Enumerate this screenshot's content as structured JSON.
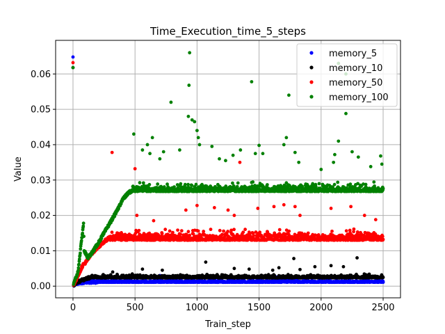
{
  "chart_data": {
    "type": "scatter",
    "title": "Time_Execution_time_5_steps",
    "xlabel": "Train_step",
    "ylabel": "Value",
    "xlim": [
      -140,
      2640
    ],
    "ylim": [
      -0.0033,
      0.0695
    ],
    "xticks": [
      0,
      500,
      1000,
      1500,
      2000,
      2500
    ],
    "yticks": [
      0.0,
      0.01,
      0.02,
      0.03,
      0.04,
      0.05,
      0.06
    ],
    "xtick_labels": [
      "0",
      "500",
      "1000",
      "1500",
      "2000",
      "2500"
    ],
    "ytick_labels": [
      "0.00",
      "0.01",
      "0.02",
      "0.03",
      "0.04",
      "0.05",
      "0.06"
    ],
    "grid": true,
    "legend_position": "upper-right",
    "series": [
      {
        "name": "memory_5",
        "color": "#0000ff",
        "points": [
          [
            0,
            0.0648
          ],
          [
            5,
            0.0002
          ],
          [
            25,
            0.0008
          ],
          [
            60,
            0.001
          ],
          [
            100,
            0.0012
          ],
          [
            200,
            0.0012
          ],
          [
            400,
            0.0012
          ],
          [
            700,
            0.0012
          ],
          [
            1000,
            0.0012
          ],
          [
            1300,
            0.0012
          ],
          [
            1600,
            0.0012
          ],
          [
            1900,
            0.0012
          ],
          [
            2200,
            0.0012
          ],
          [
            2500,
            0.0012
          ]
        ],
        "band": {
          "x_start": 60,
          "x_end": 2500,
          "base": 0.0012,
          "spread": 0.0008
        },
        "outliers": [
          [
            700,
            0.003
          ],
          [
            1130,
            0.0028
          ],
          [
            1640,
            0.0026
          ],
          [
            2360,
            0.0028
          ]
        ]
      },
      {
        "name": "memory_10",
        "color": "#000000",
        "points": [
          [
            0,
            0.0618
          ],
          [
            5,
            0.0003
          ],
          [
            30,
            0.001
          ],
          [
            80,
            0.0018
          ],
          [
            110,
            0.0022
          ],
          [
            150,
            0.0025
          ]
        ],
        "band": {
          "x_start": 150,
          "x_end": 2500,
          "base": 0.0025,
          "spread": 0.0012
        },
        "outliers": [
          [
            320,
            0.004
          ],
          [
            560,
            0.0048
          ],
          [
            720,
            0.0045
          ],
          [
            1070,
            0.0068
          ],
          [
            1300,
            0.005
          ],
          [
            1420,
            0.0048
          ],
          [
            1610,
            0.0045
          ],
          [
            1660,
            0.0052
          ],
          [
            1780,
            0.0078
          ],
          [
            1830,
            0.0047
          ],
          [
            1950,
            0.0055
          ],
          [
            2080,
            0.0058
          ],
          [
            2180,
            0.0055
          ],
          [
            2290,
            0.008
          ]
        ]
      },
      {
        "name": "memory_50",
        "color": "#ff0000",
        "points": [
          [
            0,
            0.0632
          ],
          [
            5,
            0.0003
          ],
          [
            40,
            0.003
          ],
          [
            80,
            0.006
          ],
          [
            110,
            0.007
          ],
          [
            150,
            0.0092
          ],
          [
            200,
            0.011
          ],
          [
            260,
            0.0128
          ],
          [
            300,
            0.014
          ]
        ],
        "band": {
          "x_start": 300,
          "x_end": 2500,
          "base": 0.0135,
          "spread": 0.0035
        },
        "outliers": [
          [
            315,
            0.0378
          ],
          [
            500,
            0.0332
          ],
          [
            515,
            0.02
          ],
          [
            650,
            0.0185
          ],
          [
            910,
            0.0215
          ],
          [
            1000,
            0.0228
          ],
          [
            1140,
            0.0222
          ],
          [
            1250,
            0.0215
          ],
          [
            1300,
            0.02
          ],
          [
            1345,
            0.035
          ],
          [
            1490,
            0.022
          ],
          [
            1620,
            0.0225
          ],
          [
            1700,
            0.023
          ],
          [
            1790,
            0.0225
          ],
          [
            1830,
            0.02
          ],
          [
            2080,
            0.022
          ],
          [
            2240,
            0.0225
          ],
          [
            2350,
            0.02
          ],
          [
            2440,
            0.0188
          ]
        ]
      },
      {
        "name": "memory_100",
        "color": "#008000",
        "points": [
          [
            0,
            0.0618
          ],
          [
            5,
            0.0005
          ],
          [
            40,
            0.004
          ],
          [
            85,
            0.0178
          ],
          [
            90,
            0.01
          ],
          [
            120,
            0.008
          ],
          [
            160,
            0.0098
          ],
          [
            200,
            0.012
          ],
          [
            250,
            0.015
          ],
          [
            300,
            0.018
          ],
          [
            350,
            0.021
          ],
          [
            400,
            0.0245
          ],
          [
            450,
            0.0265
          ],
          [
            480,
            0.027
          ]
        ],
        "band": {
          "x_start": 480,
          "x_end": 2500,
          "base": 0.0272,
          "spread": 0.003
        },
        "outliers": [
          [
            490,
            0.043
          ],
          [
            560,
            0.0385
          ],
          [
            600,
            0.04
          ],
          [
            620,
            0.0375
          ],
          [
            640,
            0.042
          ],
          [
            700,
            0.036
          ],
          [
            730,
            0.038
          ],
          [
            790,
            0.052
          ],
          [
            860,
            0.0385
          ],
          [
            930,
            0.048
          ],
          [
            935,
            0.0568
          ],
          [
            940,
            0.066
          ],
          [
            960,
            0.047
          ],
          [
            980,
            0.0465
          ],
          [
            1000,
            0.044
          ],
          [
            1010,
            0.042
          ],
          [
            1020,
            0.04
          ],
          [
            1120,
            0.0395
          ],
          [
            1180,
            0.036
          ],
          [
            1230,
            0.0355
          ],
          [
            1290,
            0.037
          ],
          [
            1350,
            0.0385
          ],
          [
            1440,
            0.0578
          ],
          [
            1470,
            0.0375
          ],
          [
            1500,
            0.0398
          ],
          [
            1530,
            0.0375
          ],
          [
            1700,
            0.04
          ],
          [
            1720,
            0.042
          ],
          [
            1740,
            0.054
          ],
          [
            1790,
            0.0378
          ],
          [
            1820,
            0.035
          ],
          [
            2000,
            0.033
          ],
          [
            2100,
            0.035
          ],
          [
            2110,
            0.0372
          ],
          [
            2140,
            0.041
          ],
          [
            2200,
            0.0488
          ],
          [
            2250,
            0.038
          ],
          [
            2300,
            0.0365
          ],
          [
            2400,
            0.0338
          ],
          [
            2480,
            0.0368
          ],
          [
            2490,
            0.0345
          ],
          [
            2140,
            0.063
          ],
          [
            2200,
            0.06
          ]
        ]
      }
    ]
  }
}
